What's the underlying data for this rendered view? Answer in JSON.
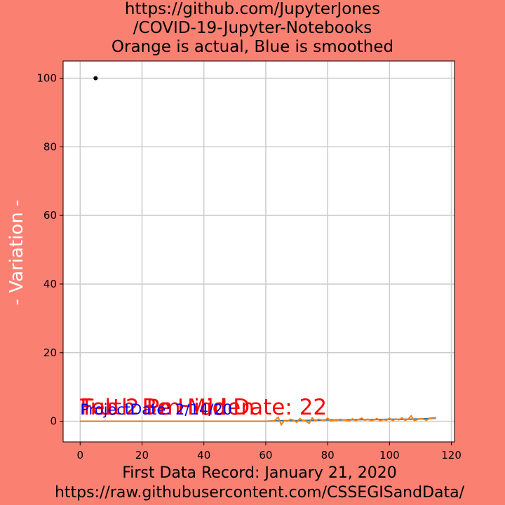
{
  "chart_data": {
    "type": "line",
    "title_lines": [
      "https://github.com/JupyterJones",
      "/COVID-19-Jupyter-Notebooks",
      "Orange is actual, Blue is smoothed"
    ],
    "xlabel_lines": [
      "First Data Record: January 21, 2020",
      "https://raw.githubusercontent.com/CSSEGISandData/"
    ],
    "ylabel": "- Variation -",
    "xlim": [
      -5.5,
      121
    ],
    "ylim": [
      -6,
      105
    ],
    "x_ticks": [
      0,
      20,
      40,
      60,
      80,
      100,
      120
    ],
    "y_ticks": [
      0,
      20,
      40,
      60,
      80,
      100
    ],
    "grid": true,
    "annotations": [
      {
        "text": "Truth Be Hidden",
        "x": 0,
        "y": 2,
        "color": "#ff0000",
        "size": "large"
      },
      {
        "text": "Feb 2 Pm Mid Date: 22",
        "x": 0,
        "y": 2,
        "color": "#ff0000",
        "size": "large"
      },
      {
        "text": "ProjectDate: 2/14/20",
        "x": 0,
        "y": 2,
        "color": "#0000ff",
        "size": "medium"
      }
    ],
    "marker_point": {
      "x": 5,
      "y": 100,
      "color": "#000000"
    },
    "series": [
      {
        "color": "#ff7f0e",
        "x": [
          0,
          10,
          20,
          30,
          40,
          50,
          60,
          62,
          63,
          64,
          65,
          66,
          67,
          68,
          69,
          70,
          71,
          72,
          73,
          74,
          75,
          76,
          77,
          78,
          79,
          80,
          81,
          82,
          83,
          84,
          85,
          86,
          87,
          88,
          89,
          90,
          91,
          92,
          93,
          94,
          95,
          96,
          97,
          98,
          99,
          100,
          101,
          102,
          103,
          104,
          105,
          106,
          107,
          108,
          109,
          110,
          111,
          112,
          113,
          114,
          115
        ],
        "y": [
          0,
          0,
          0,
          0,
          0,
          0,
          0,
          0,
          0.3,
          1.2,
          -1.0,
          0.2,
          0,
          0.6,
          0.3,
          -0.3,
          0.8,
          0.2,
          0.1,
          -0.6,
          1.0,
          0.1,
          0.6,
          0.4,
          0.2,
          0.9,
          0.1,
          0.3,
          0.2,
          0.6,
          0.4,
          0.3,
          0.1,
          0.7,
          0.2,
          0.5,
          0.9,
          0.3,
          0.6,
          0.2,
          0.4,
          0.8,
          0.1,
          0.5,
          0.3,
          0.9,
          0.2,
          0.7,
          0.4,
          1.0,
          0.3,
          0.6,
          1.6,
          0.2,
          0.5,
          0.8,
          0.6,
          0.3,
          0.9,
          1.0,
          1.1
        ]
      },
      {
        "color": "#1f77b4",
        "x": [
          0,
          20,
          40,
          60,
          64,
          70,
          75,
          80,
          85,
          90,
          95,
          100,
          105,
          110,
          115
        ],
        "y": [
          0,
          0,
          0,
          0,
          0.2,
          0.2,
          0.3,
          0.4,
          0.4,
          0.5,
          0.5,
          0.6,
          0.6,
          0.7,
          0.9
        ]
      }
    ]
  }
}
